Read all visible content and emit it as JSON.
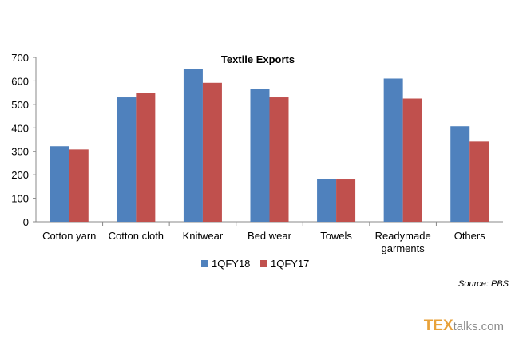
{
  "chart_data": {
    "type": "bar",
    "title": "Textile Exports",
    "categories": [
      [
        "Cotton yarn"
      ],
      [
        "Cotton cloth"
      ],
      [
        "Knitwear"
      ],
      [
        "Bed wear"
      ],
      [
        "Towels"
      ],
      [
        "Readymade",
        "garments"
      ],
      [
        "Others"
      ]
    ],
    "series": [
      {
        "name": "1QFY18",
        "color": "#4f81bd",
        "values": [
          322,
          530,
          650,
          567,
          182,
          610,
          407
        ]
      },
      {
        "name": "1QFY17",
        "color": "#c0504d",
        "values": [
          308,
          548,
          592,
          530,
          180,
          525,
          342
        ]
      }
    ],
    "ylim": [
      0,
      700
    ],
    "yticks": [
      0,
      100,
      200,
      300,
      400,
      500,
      600,
      700
    ],
    "grid": false,
    "legend_position": "bottom-center"
  },
  "source": "Source: PBS",
  "brand": {
    "part1": "TEX",
    "part2": "talks.com"
  }
}
